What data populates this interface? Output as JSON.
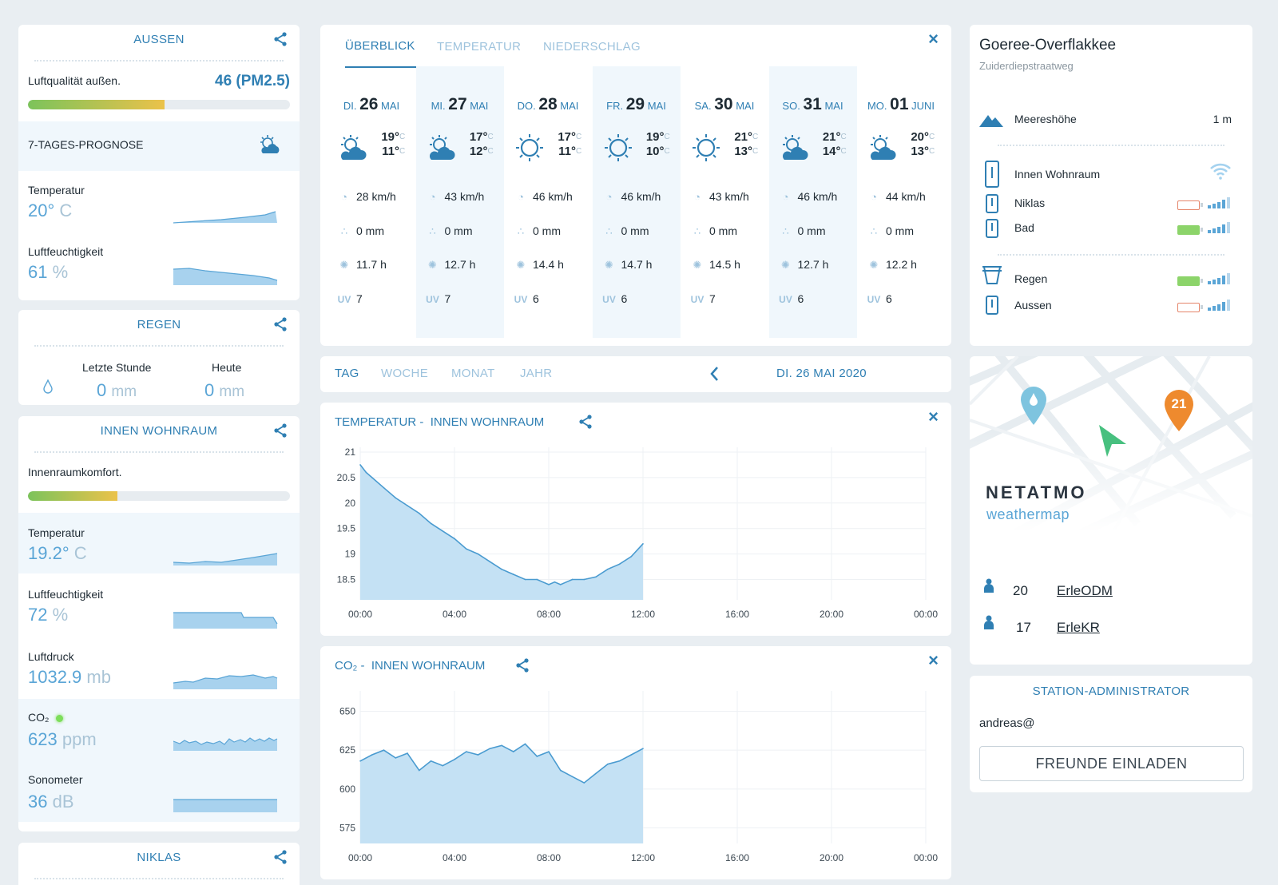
{
  "outdoor": {
    "title": "AUSSEN",
    "air_label": "Luftqualität außen.",
    "air_value": "46",
    "air_unit": "(PM2.5)",
    "air_level": 0.52
  },
  "forecast_band": {
    "label": "7-TAGES-PROGNOSE"
  },
  "outdoor_metrics": {
    "temp_label": "Temperatur",
    "temp_value": "20°",
    "temp_unit": "C",
    "hum_label": "Luftfeuchtigkeit",
    "hum_value": "61",
    "hum_unit": "%"
  },
  "rain": {
    "title": "REGEN",
    "last_hour_label": "Letzte Stunde",
    "last_hour_value": "0",
    "last_hour_unit": "mm",
    "today_label": "Heute",
    "today_value": "0",
    "today_unit": "mm"
  },
  "indoor": {
    "title": "INNEN WOHNRAUM",
    "comfort_label": "Innenraumkomfort.",
    "comfort_level": 0.34,
    "temp_label": "Temperatur",
    "temp_value": "19.2°",
    "temp_unit": "C",
    "hum_label": "Luftfeuchtigkeit",
    "hum_value": "72",
    "hum_unit": "%",
    "press_label": "Luftdruck",
    "press_value": "1032.9",
    "press_unit": "mb",
    "co2_label": "CO₂",
    "co2_value": "623",
    "co2_unit": "ppm",
    "noise_label": "Sonometer",
    "noise_value": "36",
    "noise_unit": "dB",
    "status_color": "#7dde5a"
  },
  "niklas": {
    "title": "NIKLAS"
  },
  "forecast": {
    "tabs": [
      "ÜBERBLICK",
      "TEMPERATUR",
      "NIEDERSCHLAG"
    ],
    "days": [
      {
        "dow": "DI.",
        "day": "26",
        "month": "MAI",
        "max": "19°",
        "min": "11°",
        "wind": "28 km/h",
        "rain": "0 mm",
        "sun": "11.7 h",
        "uv": "7",
        "icon": "partly-cloudy"
      },
      {
        "dow": "MI.",
        "day": "27",
        "month": "MAI",
        "max": "17°",
        "min": "12°",
        "wind": "43 km/h",
        "rain": "0 mm",
        "sun": "12.7 h",
        "uv": "7",
        "icon": "partly-cloudy"
      },
      {
        "dow": "DO.",
        "day": "28",
        "month": "MAI",
        "max": "17°",
        "min": "11°",
        "wind": "46 km/h",
        "rain": "0 mm",
        "sun": "14.4 h",
        "uv": "6",
        "icon": "sun"
      },
      {
        "dow": "FR.",
        "day": "29",
        "month": "MAI",
        "max": "19°",
        "min": "10°",
        "wind": "46 km/h",
        "rain": "0 mm",
        "sun": "14.7 h",
        "uv": "6",
        "icon": "sun"
      },
      {
        "dow": "SA.",
        "day": "30",
        "month": "MAI",
        "max": "21°",
        "min": "13°",
        "wind": "43 km/h",
        "rain": "0 mm",
        "sun": "14.5 h",
        "uv": "7",
        "icon": "sun"
      },
      {
        "dow": "SO.",
        "day": "31",
        "month": "MAI",
        "max": "21°",
        "min": "14°",
        "wind": "46 km/h",
        "rain": "0 mm",
        "sun": "12.7 h",
        "uv": "6",
        "icon": "partly-cloudy"
      },
      {
        "dow": "MO.",
        "day": "01",
        "month": "JUNI",
        "max": "20°",
        "min": "13°",
        "wind": "44 km/h",
        "rain": "0 mm",
        "sun": "12.2 h",
        "uv": "6",
        "icon": "partly-cloudy"
      }
    ],
    "temp_unit": "C",
    "uv_label": "UV"
  },
  "period": {
    "tabs": [
      "TAG",
      "WOCHE",
      "MONAT",
      "JAHR"
    ],
    "date": "DI. 26 MAI 2020"
  },
  "temp_chart_title": {
    "a": "TEMPERATUR -",
    "b": "INNEN WOHNRAUM"
  },
  "co2_chart_title": {
    "a": "CO₂ -",
    "b": "INNEN WOHNRAUM"
  },
  "chart_data": [
    {
      "type": "area",
      "x_ticks": [
        "00:00",
        "04:00",
        "08:00",
        "12:00",
        "16:00",
        "20:00",
        "00:00"
      ],
      "y_ticks": [
        "21",
        "20.5",
        "20",
        "19.5",
        "19",
        "18.5"
      ],
      "ylim": [
        18.1,
        21
      ],
      "x_hours": [
        0,
        0.25,
        0.5,
        1,
        1.5,
        2,
        2.5,
        3,
        3.5,
        4,
        4.5,
        5,
        5.5,
        6,
        6.5,
        7,
        7.5,
        8,
        8.25,
        8.5,
        8.75,
        9,
        9.5,
        10,
        10.5,
        11,
        11.5,
        12
      ],
      "values": [
        20.75,
        20.6,
        20.5,
        20.3,
        20.1,
        19.95,
        19.8,
        19.6,
        19.45,
        19.3,
        19.1,
        19.0,
        18.85,
        18.7,
        18.6,
        18.5,
        18.5,
        18.4,
        18.45,
        18.4,
        18.45,
        18.5,
        18.5,
        18.55,
        18.7,
        18.8,
        18.95,
        19.2
      ],
      "grid": true
    },
    {
      "type": "area",
      "x_ticks": [
        "00:00",
        "04:00",
        "08:00",
        "12:00",
        "16:00",
        "20:00",
        "00:00"
      ],
      "y_ticks": [
        "650",
        "625",
        "600",
        "575"
      ],
      "ylim": [
        565,
        660
      ],
      "x_hours": [
        0,
        0.5,
        1,
        1.5,
        2,
        2.5,
        3,
        3.5,
        4,
        4.5,
        5,
        5.5,
        6,
        6.5,
        7,
        7.5,
        8,
        8.5,
        9,
        9.5,
        10,
        10.5,
        11,
        11.5,
        12
      ],
      "values": [
        618,
        622,
        625,
        620,
        623,
        612,
        618,
        615,
        619,
        624,
        622,
        626,
        628,
        624,
        629,
        621,
        624,
        612,
        608,
        604,
        610,
        616,
        618,
        622,
        626
      ],
      "grid": true
    }
  ],
  "stations": {
    "place": "Goeree-Overflakkee",
    "street": "Zuiderdiepstraatweg",
    "altitude_label": "Meereshöhe",
    "altitude_value": "1 m",
    "devices": [
      {
        "name": "Innen Wohnraum",
        "battery": "wifi"
      },
      {
        "name": "Niklas",
        "battery": "low"
      },
      {
        "name": "Bad",
        "battery": "ok"
      },
      {
        "name": "Regen",
        "battery": "ok"
      },
      {
        "name": "Aussen",
        "battery": "low"
      }
    ]
  },
  "map": {
    "brand": "NETATMO",
    "sub": "weathermap",
    "pin_value": "21",
    "users": [
      {
        "count": "20",
        "name": "ErleODM"
      },
      {
        "count": "17",
        "name": "ErleKR"
      }
    ]
  },
  "admin": {
    "title": "STATION-ADMINISTRATOR",
    "email": "andreas@",
    "invite": "FREUNDE EINLADEN"
  }
}
